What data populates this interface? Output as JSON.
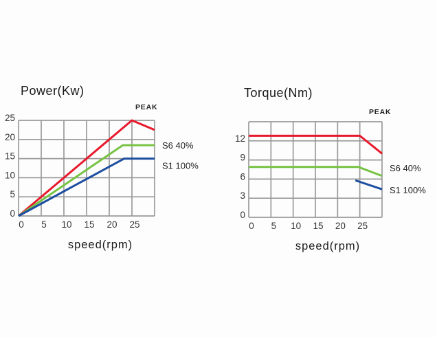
{
  "page": {
    "background": "#fdfdfd"
  },
  "chart_data": [
    {
      "type": "line",
      "title": "Power(Kw)",
      "peak_label": "PEAK",
      "xlabel": "speed(rpm)",
      "ylabel": "",
      "xlim": [
        0,
        30
      ],
      "ylim": [
        0,
        25
      ],
      "x_gridlines": [
        0,
        5,
        10,
        15,
        20,
        25,
        30
      ],
      "x_tick_labels": [
        "0",
        "5",
        "10",
        "15",
        "20",
        "25",
        ""
      ],
      "y_gridlines": [
        0,
        5,
        10,
        15,
        20,
        25
      ],
      "y_tick_labels": [
        "0",
        "5",
        "10",
        "15",
        "20",
        "25"
      ],
      "grid_color": "#9a9a9a",
      "tick_color": "#333333",
      "legend_position": "right-of-plot",
      "series": [
        {
          "name": "PEAK",
          "legend": "",
          "color": "#e8192c",
          "points": [
            [
              0,
              0
            ],
            [
              25,
              25
            ],
            [
              30,
              22.5
            ]
          ],
          "legend_dy": 0
        },
        {
          "name": "S6 40%",
          "legend": "S6 40%",
          "color": "#77c344",
          "points": [
            [
              0,
              0
            ],
            [
              23,
              18.5
            ],
            [
              30,
              18.5
            ]
          ],
          "legend_dy": 1
        },
        {
          "name": "S1 100%",
          "legend": "S1 100%",
          "color": "#1c4da0",
          "points": [
            [
              0,
              0
            ],
            [
              23.3,
              15
            ],
            [
              30,
              15
            ]
          ],
          "legend_dy": 11
        }
      ]
    },
    {
      "type": "line",
      "title": "Torque(Nm)",
      "peak_label": "PEAK",
      "xlabel": "speed(rpm)",
      "ylabel": "",
      "xlim": [
        0,
        30
      ],
      "ylim": [
        0,
        15
      ],
      "x_gridlines": [
        0,
        5,
        10,
        15,
        20,
        25,
        30
      ],
      "x_tick_labels": [
        "0",
        "5",
        "10",
        "15",
        "20",
        "25",
        ""
      ],
      "y_gridlines": [
        0,
        3,
        6,
        9,
        12,
        15
      ],
      "y_tick_labels": [
        "0",
        "3",
        "6",
        "9",
        "12",
        ""
      ],
      "grid_color": "#9a9a9a",
      "tick_color": "#333333",
      "legend_position": "right-of-plot",
      "series": [
        {
          "name": "PEAK",
          "legend": "",
          "color": "#e8192c",
          "points": [
            [
              0,
              12.8
            ],
            [
              25,
              12.8
            ],
            [
              30,
              10
            ]
          ],
          "legend_dy": 0
        },
        {
          "name": "S6 40%",
          "legend": "S6 40%",
          "color": "#77c344",
          "points": [
            [
              0,
              7.9
            ],
            [
              24.7,
              7.9
            ],
            [
              30,
              6.5
            ]
          ],
          "legend_dy": -11
        },
        {
          "name": "S1 100%",
          "legend": "S1 100%",
          "color": "#1c4da0",
          "points": [
            [
              24,
              5.8
            ],
            [
              30,
              4.4
            ]
          ],
          "legend_dy": 2
        }
      ]
    }
  ]
}
